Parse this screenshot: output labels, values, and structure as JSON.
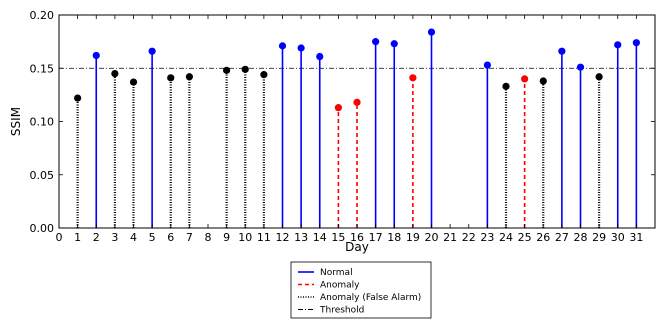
{
  "chart_data": {
    "type": "stem",
    "title": "",
    "xlabel": "Day",
    "ylabel": "SSIM",
    "xlim": [
      0,
      32
    ],
    "ylim": [
      0.0,
      0.2
    ],
    "x_ticks": [
      0,
      1,
      2,
      3,
      4,
      5,
      6,
      7,
      8,
      9,
      10,
      11,
      12,
      13,
      14,
      15,
      16,
      17,
      18,
      19,
      20,
      21,
      22,
      23,
      24,
      25,
      26,
      27,
      28,
      29,
      30,
      31
    ],
    "y_ticks": [
      0.0,
      0.05,
      0.1,
      0.15,
      0.2
    ],
    "y_tick_labels": [
      "0.00",
      "0.05",
      "0.10",
      "0.15",
      "0.20"
    ],
    "threshold": 0.15,
    "grid": false,
    "legend_position": "bottom-center",
    "series": [
      {
        "name": "Normal",
        "color": "#0000ff",
        "line_style": "solid",
        "x": [
          2,
          5,
          12,
          13,
          14,
          17,
          18,
          20,
          23,
          27,
          28,
          30,
          31
        ],
        "values": [
          0.162,
          0.166,
          0.171,
          0.169,
          0.161,
          0.175,
          0.173,
          0.184,
          0.153,
          0.166,
          0.151,
          0.172,
          0.174
        ]
      },
      {
        "name": "Anomaly",
        "color": "#ff0000",
        "line_style": "dashed",
        "x": [
          15,
          16,
          19,
          25
        ],
        "values": [
          0.113,
          0.118,
          0.141,
          0.14
        ]
      },
      {
        "name": "Anomaly (False Alarm)",
        "color": "#000000",
        "line_style": "dotted",
        "x": [
          1,
          3,
          4,
          6,
          7,
          9,
          10,
          11,
          24,
          26,
          29
        ],
        "values": [
          0.122,
          0.145,
          0.137,
          0.141,
          0.142,
          0.148,
          0.149,
          0.144,
          0.133,
          0.138,
          0.142
        ]
      }
    ],
    "threshold_line": {
      "name": "Threshold",
      "color": "#000000",
      "line_style": "dashdot"
    }
  }
}
